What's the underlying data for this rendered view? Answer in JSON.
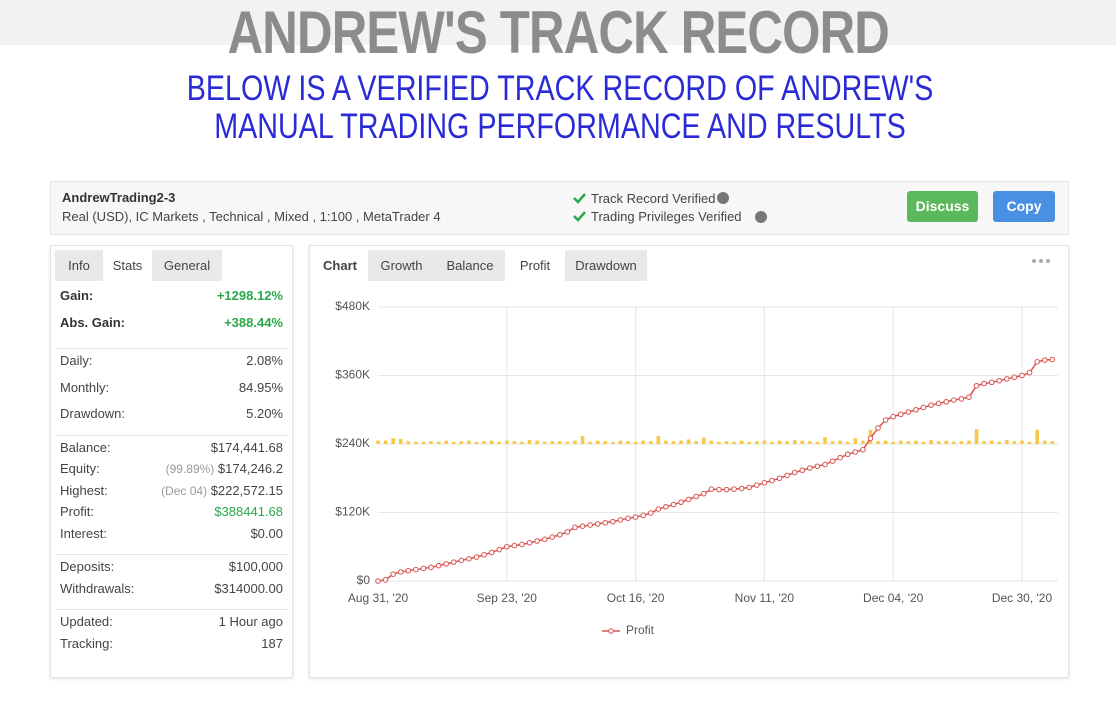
{
  "header": {
    "title": "ANDREW'S TRACK RECORD",
    "subtitle": "BELOW IS A VERIFIED TRACK RECORD OF ANDREW'S MANUAL TRADING PERFORMANCE AND RESULTS"
  },
  "account": {
    "name": "AndrewTrading2-3",
    "details": "Real (USD), IC Markets , Technical , Mixed , 1:100 , MetaTrader 4",
    "verifications": [
      "Track Record Verified",
      "Trading Privileges Verified"
    ],
    "buttons": [
      "Discuss",
      "Copy"
    ]
  },
  "stats_tabs": [
    "Info",
    "Stats",
    "General"
  ],
  "stats": [
    [
      {
        "label": "Gain:",
        "value": "+1298.12%",
        "color": "#2aa84a"
      },
      {
        "label": "Abs. Gain:",
        "value": "+388.44%",
        "color": "#2aa84a"
      }
    ],
    [
      {
        "label": "Daily:",
        "value": "2.08%"
      },
      {
        "label": "Monthly:",
        "value": "84.95%"
      },
      {
        "label": "Drawdown:",
        "value": "5.20%"
      }
    ],
    [
      {
        "label": "Balance:",
        "value": "$174,441.68"
      },
      {
        "label": "Equity:",
        "note": "(99.89%)",
        "value": "$174,246.2"
      },
      {
        "label": "Highest:",
        "note": "(Dec 04)",
        "value": "$222,572.15"
      },
      {
        "label": "Profit:",
        "value": "$388441.68",
        "color": "#2aa84a"
      },
      {
        "label": "Interest:",
        "value": "$0.00"
      }
    ],
    [
      {
        "label": "Deposits:",
        "value": "$100,000"
      },
      {
        "label": "Withdrawals:",
        "value": "$314000.00"
      }
    ],
    [
      {
        "label": "Updated:",
        "value": "1 Hour ago"
      },
      {
        "label": "Tracking:",
        "value": "187"
      }
    ]
  ],
  "chart_tabs": [
    "Chart",
    "Growth",
    "Balance",
    "Profit",
    "Drawdown"
  ],
  "chart_data": {
    "type": "line",
    "categories": [
      "Aug 31, '20",
      null,
      null,
      null,
      null,
      null,
      null,
      null,
      null,
      null,
      null,
      null,
      null,
      null,
      null,
      null,
      null,
      "Sep 23, '20",
      null,
      null,
      null,
      null,
      null,
      null,
      null,
      null,
      null,
      null,
      null,
      null,
      null,
      null,
      null,
      null,
      "Oct 16, '20",
      null,
      null,
      null,
      null,
      null,
      null,
      null,
      null,
      null,
      null,
      null,
      null,
      null,
      null,
      null,
      null,
      "Nov 11, '20",
      null,
      null,
      null,
      null,
      null,
      null,
      null,
      null,
      null,
      null,
      null,
      null,
      null,
      null,
      null,
      null,
      "Dec 04, '20",
      null,
      null,
      null,
      null,
      null,
      null,
      null,
      null,
      null,
      null,
      null,
      null,
      null,
      null,
      null,
      null,
      "Dec 30, '20",
      null,
      null,
      null,
      null
    ],
    "series": [
      {
        "name": "Profit",
        "color": "#d9534f",
        "values": [
          0,
          2000,
          12000,
          16000,
          18000,
          20000,
          22000,
          24000,
          27000,
          30000,
          33000,
          36000,
          39000,
          42000,
          46000,
          50000,
          55000,
          60000,
          62000,
          64000,
          67000,
          70000,
          73000,
          77000,
          81000,
          86000,
          94000,
          96000,
          98000,
          100000,
          102000,
          104000,
          107000,
          110000,
          112000,
          115000,
          119000,
          126000,
          130000,
          134000,
          138000,
          143000,
          148000,
          153000,
          161000,
          160000,
          160000,
          161000,
          162000,
          164000,
          168000,
          172000,
          176000,
          180000,
          185000,
          190000,
          194000,
          198000,
          201000,
          204000,
          210000,
          216000,
          222000,
          226000,
          230000,
          250000,
          268000,
          282000,
          288000,
          292000,
          296000,
          300000,
          304000,
          308000,
          311000,
          314000,
          317000,
          319000,
          322000,
          342000,
          346000,
          348000,
          351000,
          354000,
          357000,
          360000,
          365000,
          384000,
          387000,
          388000
        ]
      },
      {
        "type": "bar",
        "color": "#f7c948",
        "base": 240000,
        "values": [
          6000,
          6000,
          10000,
          9000,
          5000,
          4000,
          4000,
          5000,
          4000,
          6000,
          4000,
          5000,
          6000,
          4000,
          5000,
          6000,
          4000,
          6000,
          5000,
          4000,
          7000,
          6000,
          4000,
          5000,
          5000,
          4000,
          6000,
          14000,
          4000,
          6000,
          5000,
          4000,
          6000,
          5000,
          4000,
          6000,
          5000,
          14000,
          6000,
          5000,
          6000,
          8000,
          5000,
          11000,
          6000,
          4000,
          5000,
          4000,
          6000,
          4000,
          5000,
          6000,
          4000,
          6000,
          5000,
          7000,
          6000,
          5000,
          4000,
          12000,
          5000,
          6000,
          4000,
          10000,
          6000,
          25000,
          5000,
          6000,
          4000,
          6000,
          5000,
          6000,
          4000,
          7000,
          5000,
          6000,
          4000,
          5000,
          6000,
          26000,
          5000,
          6000,
          4000,
          7000,
          5000,
          6000,
          4000,
          25000,
          6000,
          5000
        ]
      }
    ],
    "ylim": [
      0,
      480000
    ],
    "yticks": [
      {
        "value": 0,
        "label": "$0"
      },
      {
        "value": 120000,
        "label": "$120K"
      },
      {
        "value": 240000,
        "label": "$240K"
      },
      {
        "value": 360000,
        "label": "$360K"
      },
      {
        "value": 480000,
        "label": "$480K"
      }
    ],
    "grid": true
  }
}
